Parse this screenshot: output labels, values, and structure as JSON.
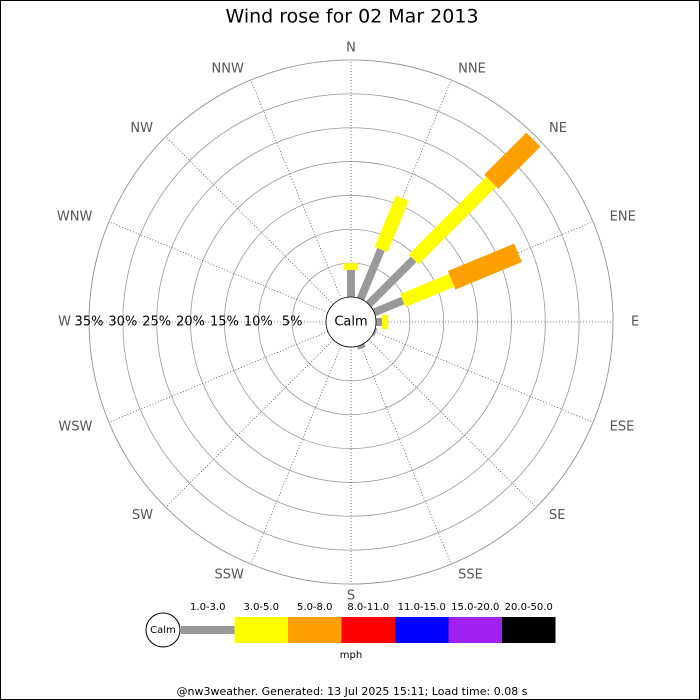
{
  "chart_data": {
    "type": "windrose",
    "title": "Wind rose for 02 Mar 2013",
    "directions": [
      "N",
      "NNE",
      "NE",
      "ENE",
      "E",
      "ESE",
      "SE",
      "SSE",
      "S",
      "SSW",
      "SW",
      "WSW",
      "W",
      "WNW",
      "NW",
      "NNW"
    ],
    "calm_label": "Calm",
    "units": "mph",
    "rlim": [
      0,
      35
    ],
    "rticks": [
      {
        "value": 5,
        "label": "5%"
      },
      {
        "value": 10,
        "label": "10%"
      },
      {
        "value": 15,
        "label": "15%"
      },
      {
        "value": 20,
        "label": "20%"
      },
      {
        "value": 25,
        "label": "25%"
      },
      {
        "value": 30,
        "label": "30%"
      },
      {
        "value": 35,
        "label": "35%"
      }
    ],
    "series": [
      {
        "name": "1.0-3.0",
        "color": "#999999",
        "values": [
          4.0,
          7.9,
          9.4,
          4.6,
          0.9,
          0.3,
          0,
          0.5,
          0,
          0,
          0,
          0,
          0,
          0,
          0,
          0
        ]
      },
      {
        "name": "3.0-5.0",
        "color": "#ffff00",
        "values": [
          1.0,
          8.2,
          16.2,
          7.8,
          0.9,
          0,
          0,
          0,
          0,
          0,
          0,
          0,
          0,
          0,
          0,
          0
        ]
      },
      {
        "name": "5.0-8.0",
        "color": "#ffa000",
        "values": [
          0,
          0,
          8.8,
          10.6,
          0,
          0,
          0,
          0,
          0,
          0,
          0,
          0,
          0,
          0,
          0,
          0
        ]
      },
      {
        "name": "8.0-11.0",
        "color": "#ff0000",
        "values": [
          0,
          0,
          0,
          0,
          0,
          0,
          0,
          0,
          0,
          0,
          0,
          0,
          0,
          0,
          0,
          0
        ]
      },
      {
        "name": "11.0-15.0",
        "color": "#0000ff",
        "values": [
          0,
          0,
          0,
          0,
          0,
          0,
          0,
          0,
          0,
          0,
          0,
          0,
          0,
          0,
          0,
          0
        ]
      },
      {
        "name": "15.0-20.0",
        "color": "#a020f0",
        "values": [
          0,
          0,
          0,
          0,
          0,
          0,
          0,
          0,
          0,
          0,
          0,
          0,
          0,
          0,
          0,
          0
        ]
      },
      {
        "name": "20.0-50.0",
        "color": "#000000",
        "values": [
          0,
          0,
          0,
          0,
          0,
          0,
          0,
          0,
          0,
          0,
          0,
          0,
          0,
          0,
          0,
          0
        ]
      }
    ],
    "footer": "@nw3weather. Generated: 13 Jul 2025 15:11; Load time: 0.08 s"
  }
}
